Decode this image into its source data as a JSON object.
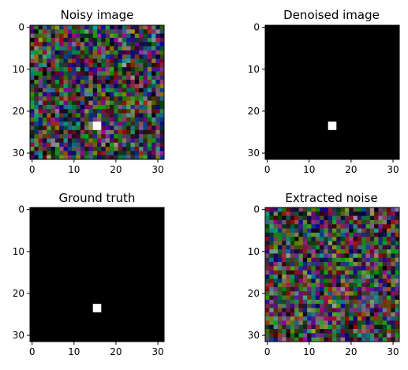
{
  "chart_data": [
    {
      "type": "heatmap",
      "title": "Noisy image",
      "xticks": [
        0,
        10,
        20,
        30
      ],
      "yticks": [
        0,
        10,
        20,
        30
      ],
      "xlim": [
        -0.5,
        31.5
      ],
      "ylim": [
        31.5,
        -0.5
      ],
      "grid": false,
      "grid_size": [
        32,
        32
      ],
      "background": "random-color-noise",
      "bright_pixel": {
        "x": 15,
        "y": 23,
        "size": 2,
        "color": "#ffffff"
      }
    },
    {
      "type": "heatmap",
      "title": "Denoised image",
      "xticks": [
        0,
        10,
        20,
        30
      ],
      "yticks": [
        0,
        10,
        20,
        30
      ],
      "xlim": [
        -0.5,
        31.5
      ],
      "ylim": [
        31.5,
        -0.5
      ],
      "grid": false,
      "grid_size": [
        32,
        32
      ],
      "background": "#000000",
      "bright_pixel": {
        "x": 15,
        "y": 23,
        "size": 2,
        "color": "#ffffff"
      }
    },
    {
      "type": "heatmap",
      "title": "Ground truth",
      "xticks": [
        0,
        10,
        20,
        30
      ],
      "yticks": [
        0,
        10,
        20,
        30
      ],
      "xlim": [
        -0.5,
        31.5
      ],
      "ylim": [
        31.5,
        -0.5
      ],
      "grid": false,
      "grid_size": [
        32,
        32
      ],
      "background": "#000000",
      "bright_pixel": {
        "x": 15,
        "y": 23,
        "size": 2,
        "color": "#ffffff"
      }
    },
    {
      "type": "heatmap",
      "title": "Extracted noise",
      "xticks": [
        0,
        10,
        20,
        30
      ],
      "yticks": [
        0,
        10,
        20,
        30
      ],
      "xlim": [
        -0.5,
        31.5
      ],
      "ylim": [
        31.5,
        -0.5
      ],
      "grid": false,
      "grid_size": [
        32,
        32
      ],
      "background": "random-color-noise"
    }
  ]
}
